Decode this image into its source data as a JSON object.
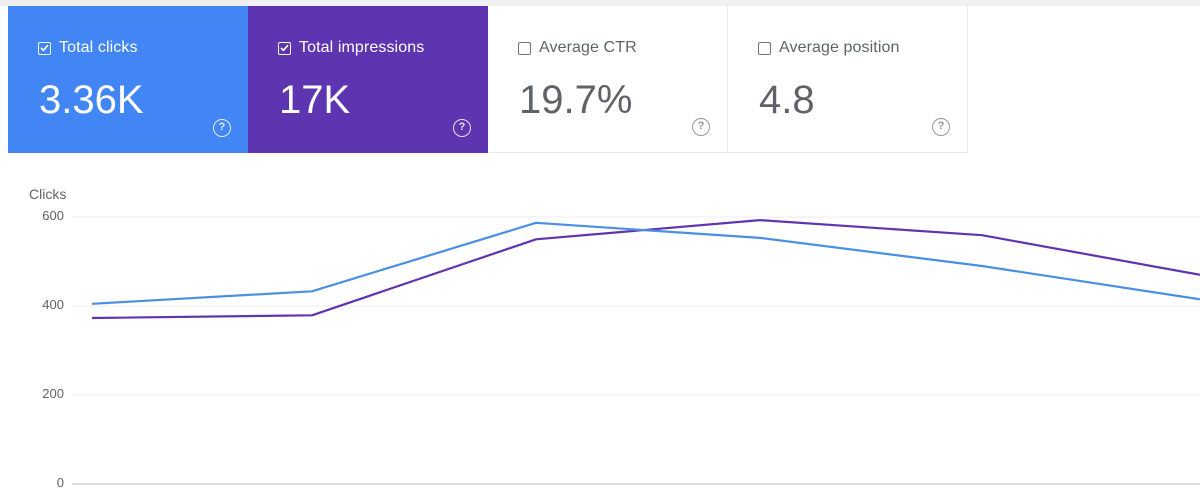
{
  "metrics": [
    {
      "label": "Total clicks",
      "value": "3.36K",
      "checked": true,
      "color": "#4285f4"
    },
    {
      "label": "Total impressions",
      "value": "17K",
      "checked": true,
      "color": "#5e35b1"
    },
    {
      "label": "Average CTR",
      "value": "19.7%",
      "checked": false
    },
    {
      "label": "Average position",
      "value": "4.8",
      "checked": false
    }
  ],
  "help_glyph": "?",
  "chart_data": {
    "type": "line",
    "ylabel": "Clicks",
    "ylim": [
      0,
      600
    ],
    "yticks": [
      "600",
      "400",
      "200",
      "0"
    ],
    "grid": true,
    "x": [
      1,
      2,
      3,
      4,
      5,
      6
    ],
    "series": [
      {
        "color": "#4a90e2",
        "values": [
          405,
          433,
          587,
          553,
          490,
          415
        ]
      },
      {
        "color": "#5e35b1",
        "values": [
          373,
          379,
          550,
          593,
          559,
          470
        ]
      }
    ]
  }
}
